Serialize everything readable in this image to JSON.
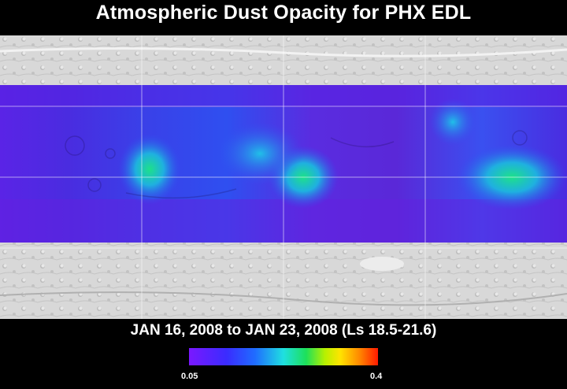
{
  "title": "Atmospheric Dust Opacity for PHX EDL",
  "subtitle": "JAN 16, 2008 to JAN 23, 2008 (Ls 18.5-21.6)",
  "colorbar": {
    "min_label": "0.05",
    "max_label": "0.4",
    "min": 0.05,
    "max": 0.4,
    "colors": [
      "#7a18ff",
      "#3a2cff",
      "#1f6dff",
      "#1fe0e0",
      "#1de05a",
      "#b8f000",
      "#ffe400",
      "#ff8a00",
      "#ff1a00"
    ]
  },
  "map": {
    "projection": "simple cylindrical global map (Mars)",
    "grid": true,
    "data_band": "mid latitudes colored by dust opacity; polar regions shown as grey shaded relief",
    "high_opacity_regions": [
      "central-west",
      "center",
      "east"
    ]
  }
}
